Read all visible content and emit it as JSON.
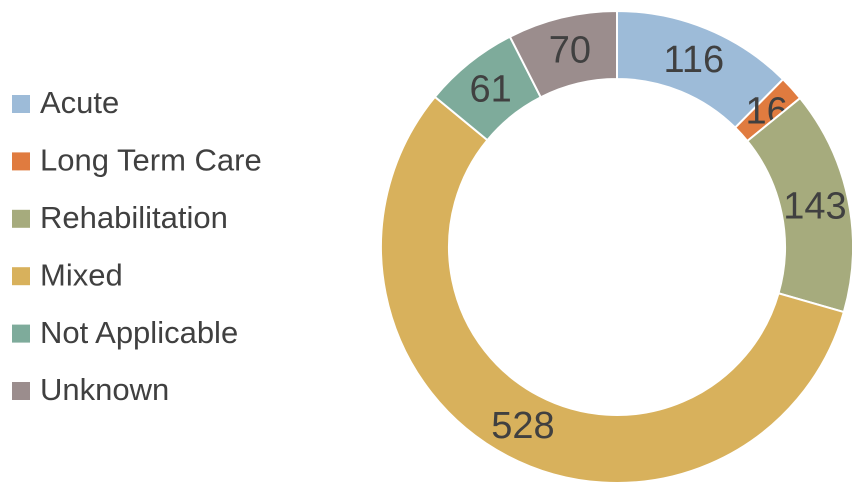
{
  "chart_data": {
    "type": "donut",
    "categories": [
      "Acute",
      "Long Term Care",
      "Rehabilitation",
      "Mixed",
      "Not Applicable",
      "Unknown"
    ],
    "values": [
      116,
      16,
      143,
      528,
      61,
      70
    ],
    "colors": [
      "#9dbbd8",
      "#e07b3f",
      "#a6ab7d",
      "#d8b15c",
      "#7eab9b",
      "#9b8d8d"
    ],
    "legend": "left"
  }
}
